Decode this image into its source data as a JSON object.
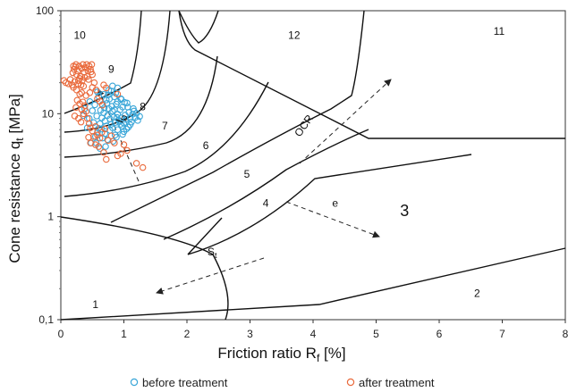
{
  "chart_data": {
    "type": "scatter",
    "title": "",
    "xlabel": "Friction ratio R",
    "xlabel_sub": "f",
    "xlabel_unit": " [%]",
    "ylabel": "Cone resistance q",
    "ylabel_sub": "t",
    "ylabel_unit": " [MPa]",
    "xlim": [
      0,
      8
    ],
    "ylim": [
      0.1,
      100
    ],
    "y_scale": "log",
    "x_ticks": [
      "0",
      "1",
      "2",
      "3",
      "4",
      "5",
      "6",
      "7",
      "8"
    ],
    "y_ticks": [
      {
        "value": 0.1,
        "label": "0,1"
      },
      {
        "value": 1,
        "label": "1"
      },
      {
        "value": 10,
        "label": "10"
      },
      {
        "value": 100,
        "label": "100"
      }
    ],
    "grid": false,
    "zone_labels": [
      {
        "text": "1",
        "x": 0.55,
        "y": 0.14
      },
      {
        "text": "2",
        "x": 6.6,
        "y": 0.18
      },
      {
        "text": "3",
        "x": 5.45,
        "y": 1.1,
        "large": true
      },
      {
        "text": "4",
        "x": 3.25,
        "y": 1.35
      },
      {
        "text": "5",
        "x": 2.95,
        "y": 2.6
      },
      {
        "text": "6",
        "x": 2.3,
        "y": 4.9
      },
      {
        "text": "7",
        "x": 1.65,
        "y": 7.6
      },
      {
        "text": "8",
        "x": 1.3,
        "y": 11.7
      },
      {
        "text": "9",
        "x": 0.8,
        "y": 27
      },
      {
        "text": "10",
        "x": 0.3,
        "y": 58
      },
      {
        "text": "11",
        "x": 6.95,
        "y": 63
      },
      {
        "text": "12",
        "x": 3.7,
        "y": 58
      }
    ],
    "trend_labels": [
      {
        "text": "OCR",
        "x": 3.9,
        "y": 7.3,
        "angle": -55
      },
      {
        "text": "e",
        "x": 4.35,
        "y": 1.25,
        "angle": 0
      },
      {
        "text": "S",
        "sub": "t",
        "x": 2.4,
        "y": 0.42,
        "angle": 0
      },
      {
        "text": "I",
        "sub": "D",
        "x": 1.0,
        "y": 8.8,
        "angle": -70
      }
    ],
    "series": [
      {
        "name": "before treatment",
        "color": "#3aa6d8",
        "points": [
          [
            0.48,
            5.2
          ],
          [
            0.55,
            6.0
          ],
          [
            0.6,
            7.2
          ],
          [
            0.62,
            8.0
          ],
          [
            0.65,
            9.1
          ],
          [
            0.68,
            10.2
          ],
          [
            0.7,
            8.5
          ],
          [
            0.72,
            7.6
          ],
          [
            0.74,
            9.6
          ],
          [
            0.76,
            11.2
          ],
          [
            0.78,
            8.9
          ],
          [
            0.8,
            7.9
          ],
          [
            0.82,
            10.6
          ],
          [
            0.84,
            9.3
          ],
          [
            0.86,
            8.2
          ],
          [
            0.88,
            12.4
          ],
          [
            0.9,
            9.9
          ],
          [
            0.92,
            8.6
          ],
          [
            0.94,
            10.9
          ],
          [
            0.96,
            9.1
          ],
          [
            0.98,
            11.6
          ],
          [
            1.0,
            8.1
          ],
          [
            1.02,
            9.7
          ],
          [
            1.05,
            12.7
          ],
          [
            1.08,
            10.3
          ],
          [
            1.1,
            9.0
          ],
          [
            1.15,
            11.2
          ],
          [
            1.2,
            10.1
          ],
          [
            1.25,
            9.4
          ],
          [
            0.58,
            6.6
          ],
          [
            0.64,
            7.1
          ],
          [
            0.7,
            6.4
          ],
          [
            0.74,
            5.6
          ],
          [
            0.78,
            6.9
          ],
          [
            0.82,
            7.3
          ],
          [
            0.86,
            6.2
          ],
          [
            0.9,
            7.0
          ],
          [
            0.95,
            7.9
          ],
          [
            1.0,
            6.7
          ],
          [
            0.66,
            12.3
          ],
          [
            0.72,
            13.6
          ],
          [
            0.75,
            15.2
          ],
          [
            0.8,
            16.6
          ],
          [
            0.85,
            14.6
          ],
          [
            0.9,
            13.1
          ],
          [
            0.95,
            14.0
          ],
          [
            0.6,
            14.8
          ],
          [
            0.54,
            12.2
          ],
          [
            0.5,
            10.7
          ],
          [
            0.45,
            9.0
          ],
          [
            0.42,
            7.3
          ],
          [
            0.52,
            8.2
          ],
          [
            0.57,
            9.5
          ],
          [
            0.63,
            10.8
          ],
          [
            0.69,
            11.4
          ],
          [
            0.73,
            12.6
          ],
          [
            0.77,
            13.9
          ],
          [
            0.81,
            11.8
          ],
          [
            0.85,
            10.9
          ],
          [
            0.89,
            9.2
          ],
          [
            0.93,
            8.4
          ],
          [
            0.97,
            7.6
          ],
          [
            1.03,
            8.8
          ],
          [
            1.07,
            7.4
          ],
          [
            1.12,
            8.3
          ],
          [
            1.18,
            9.2
          ],
          [
            1.22,
            8.6
          ],
          [
            0.9,
            17.8
          ],
          [
            0.82,
            18.6
          ],
          [
            0.76,
            16.9
          ],
          [
            0.68,
            15.4
          ],
          [
            0.58,
            16.3
          ],
          [
            0.46,
            13.1
          ],
          [
            0.38,
            11.2
          ],
          [
            0.36,
            9.6
          ],
          [
            0.56,
            5.2
          ],
          [
            0.62,
            4.6
          ],
          [
            0.66,
            5.8
          ],
          [
            0.71,
            4.8
          ],
          [
            0.83,
            5.4
          ],
          [
            0.88,
            5.9
          ],
          [
            0.98,
            6.3
          ],
          [
            1.04,
            7.1
          ],
          [
            1.1,
            7.8
          ],
          [
            1.14,
            9.9
          ],
          [
            1.16,
            10.6
          ],
          [
            1.06,
            11.6
          ],
          [
            1.01,
            12.9
          ],
          [
            0.96,
            13.8
          ],
          [
            0.87,
            15.8
          ]
        ]
      },
      {
        "name": "after treatment",
        "color": "#e96a3c",
        "points": [
          [
            0.05,
            21
          ],
          [
            0.08,
            20
          ],
          [
            0.12,
            19.5
          ],
          [
            0.15,
            21.5
          ],
          [
            0.18,
            19
          ],
          [
            0.2,
            18
          ],
          [
            0.22,
            20.5
          ],
          [
            0.25,
            17
          ],
          [
            0.27,
            19.5
          ],
          [
            0.3,
            22
          ],
          [
            0.33,
            16
          ],
          [
            0.36,
            18.5
          ],
          [
            0.19,
            25
          ],
          [
            0.21,
            27
          ],
          [
            0.23,
            28.5
          ],
          [
            0.25,
            24
          ],
          [
            0.27,
            26
          ],
          [
            0.29,
            29
          ],
          [
            0.31,
            23
          ],
          [
            0.33,
            27.5
          ],
          [
            0.35,
            30
          ],
          [
            0.37,
            25.5
          ],
          [
            0.39,
            28
          ],
          [
            0.41,
            30
          ],
          [
            0.43,
            26
          ],
          [
            0.45,
            29
          ],
          [
            0.47,
            27
          ],
          [
            0.49,
            30
          ],
          [
            0.5,
            24
          ],
          [
            0.2,
            29
          ],
          [
            0.24,
            30
          ],
          [
            0.28,
            21
          ],
          [
            0.32,
            19
          ],
          [
            0.34,
            21
          ],
          [
            0.38,
            22.5
          ],
          [
            0.42,
            23
          ],
          [
            0.44,
            21.5
          ],
          [
            0.48,
            25.5
          ],
          [
            0.35,
            13
          ],
          [
            0.38,
            12
          ],
          [
            0.4,
            10.5
          ],
          [
            0.42,
            9
          ],
          [
            0.45,
            8
          ],
          [
            0.47,
            7.3
          ],
          [
            0.5,
            6.8
          ],
          [
            0.55,
            7.5
          ],
          [
            0.58,
            6.2
          ],
          [
            0.62,
            5.8
          ],
          [
            0.65,
            6.6
          ],
          [
            0.7,
            7.1
          ],
          [
            0.75,
            5.5
          ],
          [
            0.8,
            6.1
          ],
          [
            0.85,
            5.2
          ],
          [
            0.3,
            12.5
          ],
          [
            0.33,
            11
          ],
          [
            0.36,
            10
          ],
          [
            0.28,
            9
          ],
          [
            0.32,
            8.3
          ],
          [
            0.44,
            5.9
          ],
          [
            0.47,
            5.2
          ],
          [
            0.52,
            6
          ],
          [
            0.58,
            14
          ],
          [
            0.62,
            13.2
          ],
          [
            0.66,
            12.1
          ],
          [
            0.46,
            16
          ],
          [
            0.5,
            18
          ],
          [
            0.53,
            20
          ],
          [
            1.0,
            5
          ],
          [
            1.05,
            4.4
          ],
          [
            1.2,
            3.3
          ],
          [
            1.3,
            3.0
          ],
          [
            0.9,
            3.9
          ],
          [
            0.95,
            4.1
          ],
          [
            0.72,
            3.6
          ],
          [
            0.68,
            4.2
          ],
          [
            0.6,
            4.8
          ],
          [
            0.55,
            5.0
          ],
          [
            0.9,
            15.5
          ],
          [
            0.4,
            15
          ],
          [
            0.56,
            17
          ],
          [
            0.3,
            15.5
          ],
          [
            0.72,
            17.8
          ],
          [
            0.68,
            19
          ],
          [
            0.26,
            13.5
          ],
          [
            0.24,
            11.5
          ],
          [
            0.22,
            9.5
          ]
        ]
      }
    ]
  },
  "legend": [
    {
      "label": "before treatment",
      "color": "#3aa6d8"
    },
    {
      "label": "after treatment",
      "color": "#e96a3c"
    }
  ]
}
